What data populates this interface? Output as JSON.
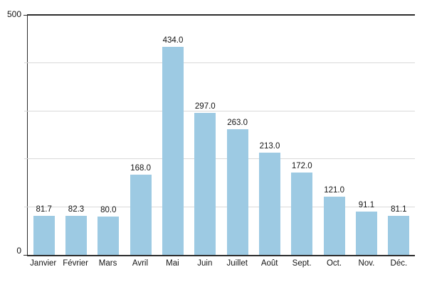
{
  "chart_data": {
    "type": "bar",
    "title": "",
    "xlabel": "",
    "ylabel": "",
    "categories": [
      "Janvier",
      "Février",
      "Mars",
      "Avril",
      "Mai",
      "Juin",
      "Juillet",
      "Août",
      "Sept.",
      "Oct.",
      "Nov.",
      "Déc."
    ],
    "values": [
      81.7,
      82.3,
      80.0,
      168.0,
      434.0,
      297.0,
      263.0,
      213.0,
      172.0,
      121.0,
      91.1,
      81.1
    ],
    "value_labels": [
      "81.7",
      "82.3",
      "80.0",
      "168.0",
      "434.0",
      "297.0",
      "263.0",
      "213.0",
      "172.0",
      "121.0",
      "91.1",
      "81.1"
    ],
    "ylim": [
      0,
      500
    ],
    "gridline_values": [
      100,
      200,
      300,
      400
    ],
    "grid": "horizontal",
    "legend_position": "none",
    "yticks": {
      "top": "500",
      "bottom": "0"
    },
    "colors": {
      "bar": "#9dcae3",
      "grid": "#d9d9d9",
      "axis": "#2c2c2c",
      "text": "#131313",
      "background": "#ffffff"
    }
  }
}
